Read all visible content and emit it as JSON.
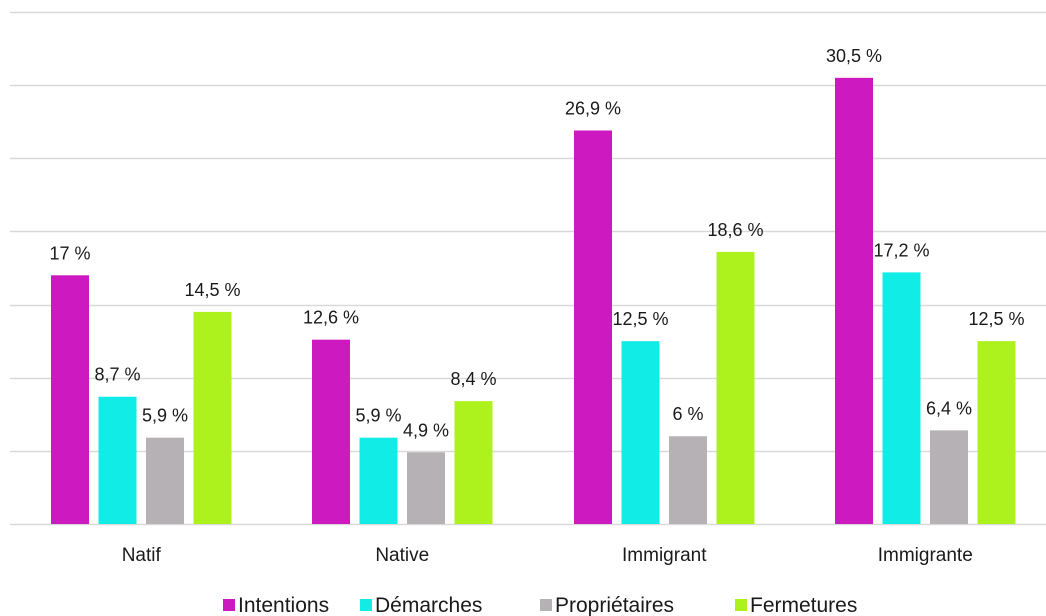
{
  "chart_data": {
    "type": "bar",
    "categories": [
      "Natif",
      "Native",
      "Immigrant",
      "Immigrante"
    ],
    "series": [
      {
        "name": "Intentions",
        "color": "#cc19c0",
        "values": [
          17,
          12.6,
          26.9,
          30.5
        ],
        "labels": [
          "17 %",
          "12,6 %",
          "26,9 %",
          "30,5 %"
        ]
      },
      {
        "name": "Démarches",
        "color": "#12ece6",
        "values": [
          8.7,
          5.9,
          12.5,
          17.2
        ],
        "labels": [
          "8,7 %",
          "5,9 %",
          "12,5 %",
          "17,2 %"
        ]
      },
      {
        "name": "Propriétaires",
        "color": "#b6b1b4",
        "values": [
          5.9,
          4.9,
          6,
          6.4
        ],
        "labels": [
          "5,9 %",
          "4,9 %",
          "6 %",
          "6,4 %"
        ]
      },
      {
        "name": "Fermetures",
        "color": "#adf21c",
        "values": [
          14.5,
          8.4,
          18.6,
          12.5
        ],
        "labels": [
          "14,5 %",
          "8,4 %",
          "18,6 %",
          "12,5 %"
        ]
      }
    ],
    "ylim": [
      0,
      35
    ],
    "grid": true,
    "legend": "bottom"
  }
}
